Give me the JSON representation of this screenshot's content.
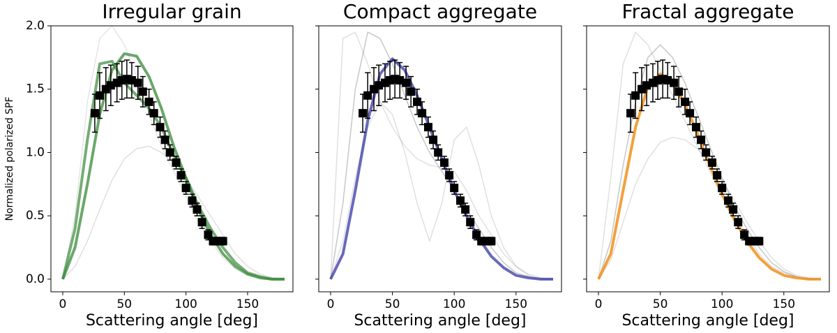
{
  "chart_data": [
    {
      "type": "line",
      "title": "Irregular grain",
      "xlabel": "Scattering angle [deg]",
      "ylabel": "Normalized polarized SPF",
      "xlim": [
        -9.6,
        186.8
      ],
      "ylim": [
        -0.1,
        2.0
      ],
      "xticks": [
        0,
        50,
        100,
        150
      ],
      "yticks": [
        {
          "value": 0,
          "label": "0.0"
        },
        {
          "value": 0.5,
          "label": "0.5"
        },
        {
          "value": 1,
          "label": "1.0"
        },
        {
          "value": 1.5,
          "label": "1.5"
        },
        {
          "value": 2,
          "label": "2.0"
        }
      ],
      "ytick_labels": true,
      "x": [
        0,
        10,
        20,
        30,
        40,
        50,
        60,
        70,
        80,
        90,
        100,
        110,
        120,
        130,
        140,
        150,
        160,
        170,
        180
      ],
      "series": [
        {
          "color": "#999999",
          "opacity": 0.3,
          "linewidth": 1.5,
          "values": [
            0,
            0.1,
            0.3,
            0.55,
            0.78,
            0.95,
            1.03,
            1.05,
            1.0,
            0.92,
            0.8,
            0.65,
            0.5,
            0.35,
            0.2,
            0.1,
            0.04,
            0.01,
            0
          ]
        },
        {
          "color": "#999999",
          "opacity": 0.25,
          "linewidth": 1.5,
          "values": [
            0,
            0.5,
            1.4,
            1.9,
            2.0,
            1.85,
            1.6,
            1.3,
            1.05,
            0.85,
            0.65,
            0.45,
            0.3,
            0.17,
            0.08,
            0.03,
            0.01,
            0,
            0
          ]
        },
        {
          "color": "#3a8a3a",
          "opacity": 0.7,
          "linewidth": 4,
          "values": [
            0,
            0.4,
            1.1,
            1.7,
            1.72,
            1.55,
            1.45,
            1.35,
            1.2,
            0.98,
            0.8,
            0.58,
            0.4,
            0.25,
            0.13,
            0.05,
            0.02,
            0,
            0
          ]
        },
        {
          "color": "#3a8a3a",
          "opacity": 0.75,
          "linewidth": 4,
          "values": [
            0,
            0.25,
            0.75,
            1.3,
            1.65,
            1.78,
            1.76,
            1.6,
            1.35,
            1.05,
            0.8,
            0.55,
            0.35,
            0.2,
            0.1,
            0.04,
            0.01,
            0,
            0
          ]
        }
      ],
      "points": {
        "x": [
          26,
          30,
          35,
          39,
          44,
          48,
          52,
          56,
          61,
          65,
          70,
          74,
          79,
          83,
          87,
          92,
          96,
          100,
          105,
          109,
          113,
          118,
          122,
          126,
          130
        ],
        "y": [
          1.31,
          1.45,
          1.5,
          1.53,
          1.55,
          1.57,
          1.58,
          1.57,
          1.55,
          1.48,
          1.4,
          1.31,
          1.2,
          1.1,
          1.0,
          0.92,
          0.82,
          0.72,
          0.62,
          0.55,
          0.45,
          0.35,
          0.3,
          0.3,
          0.3
        ],
        "err": [
          0.15,
          0.18,
          0.17,
          0.16,
          0.15,
          0.15,
          0.15,
          0.14,
          0.13,
          0.12,
          0.1,
          0.09,
          0.08,
          0.07,
          0.06,
          0.05,
          0.05,
          0.05,
          0.05,
          0.05,
          0.05,
          0.04,
          0.03,
          0.03,
          0.03
        ]
      }
    },
    {
      "type": "line",
      "title": "Compact aggregate",
      "xlabel": "Scattering angle [deg]",
      "xlim": [
        -9.6,
        186.8
      ],
      "ylim": [
        -0.1,
        2.0
      ],
      "xticks": [
        0,
        50,
        100,
        150
      ],
      "yticks": [
        0,
        0.5,
        1,
        1.5,
        2
      ],
      "ytick_labels": false,
      "x": [
        0,
        10,
        20,
        30,
        40,
        50,
        60,
        70,
        80,
        90,
        100,
        110,
        120,
        130,
        140,
        150,
        160,
        170,
        180
      ],
      "series": [
        {
          "color": "#999999",
          "opacity": 0.3,
          "linewidth": 1.5,
          "values": [
            0,
            1.9,
            1.95,
            1.7,
            1.4,
            1.2,
            1.05,
            0.95,
            0.9,
            0.88,
            0.85,
            0.7,
            0.5,
            0.35,
            0.2,
            0.1,
            0.04,
            0.01,
            0
          ]
        },
        {
          "color": "#444444",
          "opacity": 0.3,
          "linewidth": 1.5,
          "values": [
            0,
            0.6,
            1.5,
            1.95,
            1.9,
            1.7,
            1.45,
            1.2,
            1.0,
            0.85,
            0.7,
            0.55,
            0.4,
            0.25,
            0.13,
            0.05,
            0.02,
            0,
            0
          ]
        },
        {
          "color": "#999999",
          "opacity": 0.3,
          "linewidth": 1.5,
          "values": [
            0,
            0.3,
            0.8,
            1.2,
            1.4,
            1.3,
            1.0,
            0.6,
            0.3,
            0.6,
            1.1,
            1.2,
            0.9,
            0.5,
            0.25,
            0.1,
            0.03,
            0,
            0
          ]
        },
        {
          "color": "#2a2aa0",
          "opacity": 0.7,
          "linewidth": 4,
          "values": [
            0,
            0.2,
            0.7,
            1.25,
            1.62,
            1.74,
            1.65,
            1.45,
            1.2,
            0.95,
            0.7,
            0.5,
            0.32,
            0.18,
            0.09,
            0.03,
            0.01,
            0,
            0
          ]
        }
      ],
      "points": {
        "x": [
          26,
          30,
          35,
          39,
          44,
          48,
          52,
          56,
          61,
          65,
          70,
          74,
          79,
          83,
          87,
          92,
          96,
          100,
          105,
          109,
          113,
          118,
          122,
          126,
          130
        ],
        "y": [
          1.31,
          1.45,
          1.5,
          1.53,
          1.55,
          1.57,
          1.58,
          1.57,
          1.55,
          1.48,
          1.4,
          1.31,
          1.2,
          1.1,
          1.0,
          0.92,
          0.82,
          0.72,
          0.62,
          0.55,
          0.45,
          0.35,
          0.3,
          0.3,
          0.3
        ],
        "err": [
          0.15,
          0.18,
          0.17,
          0.16,
          0.15,
          0.15,
          0.15,
          0.14,
          0.13,
          0.12,
          0.1,
          0.09,
          0.08,
          0.07,
          0.06,
          0.05,
          0.05,
          0.05,
          0.05,
          0.05,
          0.05,
          0.04,
          0.03,
          0.03,
          0.03
        ]
      }
    },
    {
      "type": "line",
      "title": "Fractal aggregate",
      "xlabel": "Scattering angle [deg]",
      "xlim": [
        -9.6,
        186.8
      ],
      "ylim": [
        -0.1,
        2.0
      ],
      "xticks": [
        0,
        50,
        100,
        150
      ],
      "yticks": [
        0,
        0.5,
        1,
        1.5,
        2
      ],
      "ytick_labels": false,
      "x": [
        0,
        10,
        20,
        30,
        40,
        50,
        60,
        70,
        80,
        90,
        100,
        110,
        120,
        130,
        140,
        150,
        160,
        170,
        180
      ],
      "series": [
        {
          "color": "#999999",
          "opacity": 0.3,
          "linewidth": 1.5,
          "values": [
            0,
            0.8,
            1.7,
            1.95,
            1.85,
            1.65,
            1.45,
            1.25,
            1.05,
            0.85,
            0.65,
            0.5,
            0.35,
            0.2,
            0.1,
            0.05,
            0.02,
            0,
            0
          ]
        },
        {
          "color": "#444444",
          "opacity": 0.3,
          "linewidth": 1.5,
          "values": [
            0,
            0.3,
            0.9,
            1.4,
            1.75,
            1.85,
            1.75,
            1.55,
            1.3,
            1.05,
            0.8,
            0.58,
            0.4,
            0.25,
            0.13,
            0.06,
            0.02,
            0,
            0
          ]
        },
        {
          "color": "#999999",
          "opacity": 0.3,
          "linewidth": 1.5,
          "values": [
            0,
            0.15,
            0.45,
            0.75,
            0.95,
            1.08,
            1.12,
            1.1,
            1.03,
            0.92,
            0.78,
            0.62,
            0.45,
            0.3,
            0.17,
            0.08,
            0.03,
            0.01,
            0
          ]
        },
        {
          "color": "#f0901a",
          "opacity": 0.85,
          "linewidth": 4,
          "values": [
            0,
            0.2,
            0.7,
            1.2,
            1.52,
            1.62,
            1.55,
            1.38,
            1.15,
            0.9,
            0.67,
            0.47,
            0.3,
            0.17,
            0.08,
            0.03,
            0.01,
            0,
            0
          ]
        }
      ],
      "points": {
        "x": [
          26,
          30,
          35,
          39,
          44,
          48,
          52,
          56,
          61,
          65,
          70,
          74,
          79,
          83,
          87,
          92,
          96,
          100,
          105,
          109,
          113,
          118,
          122,
          126,
          130
        ],
        "y": [
          1.31,
          1.45,
          1.5,
          1.53,
          1.55,
          1.57,
          1.58,
          1.57,
          1.55,
          1.48,
          1.4,
          1.31,
          1.2,
          1.1,
          1.0,
          0.92,
          0.82,
          0.72,
          0.62,
          0.55,
          0.45,
          0.35,
          0.3,
          0.3,
          0.3
        ],
        "err": [
          0.15,
          0.18,
          0.17,
          0.16,
          0.15,
          0.15,
          0.15,
          0.14,
          0.13,
          0.12,
          0.1,
          0.09,
          0.08,
          0.07,
          0.06,
          0.05,
          0.05,
          0.05,
          0.05,
          0.05,
          0.05,
          0.04,
          0.03,
          0.03,
          0.03
        ]
      }
    }
  ]
}
